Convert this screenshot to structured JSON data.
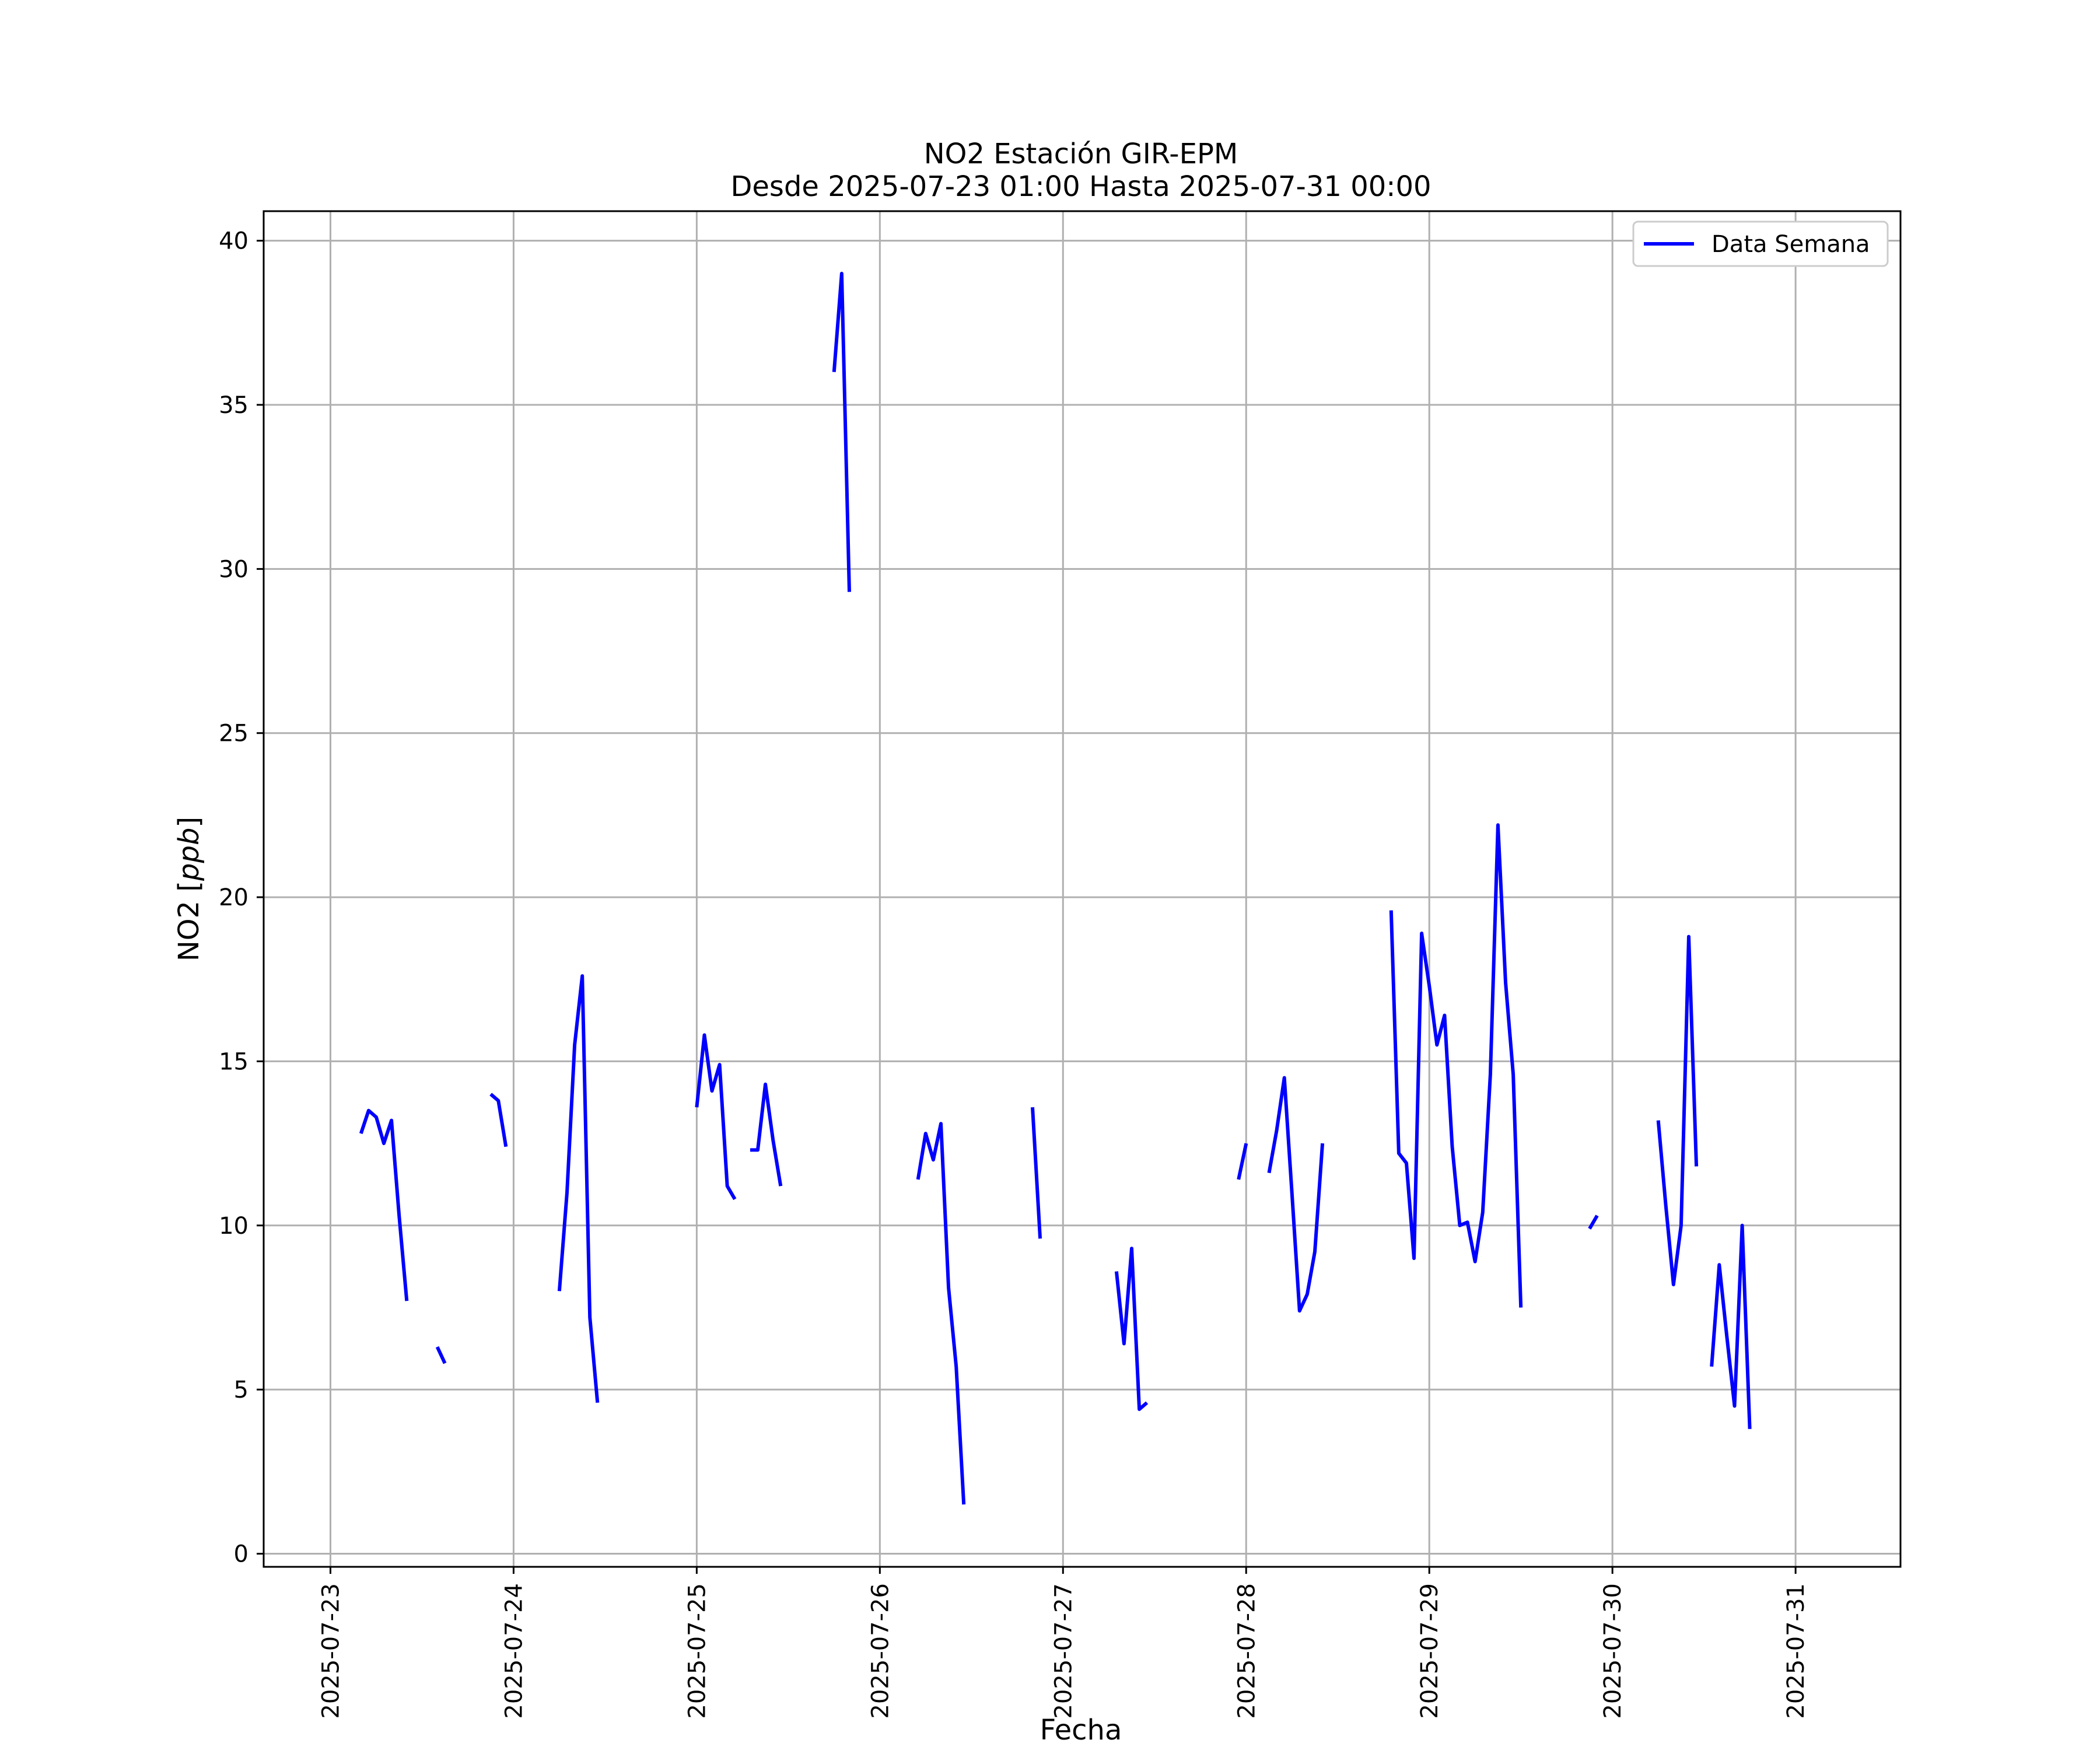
{
  "chart_data": {
    "type": "line",
    "title": "NO2 Estación GIR-EPM",
    "subtitle": "Desde 2025-07-23 01:00 Hasta 2025-07-31 00:00",
    "xlabel": "Fecha",
    "ylabel_text": "NO2 [",
    "ylabel_unit": "ppb",
    "ylabel_close": "]",
    "xlim": [
      "2025-07-22T15:15:00",
      "2025-07-31T13:45:00"
    ],
    "ylim": [
      -0.4,
      40.9
    ],
    "x_ticks": [
      "2025-07-23",
      "2025-07-24",
      "2025-07-25",
      "2025-07-26",
      "2025-07-27",
      "2025-07-28",
      "2025-07-29",
      "2025-07-30",
      "2025-07-31"
    ],
    "y_ticks": [
      0,
      5,
      10,
      15,
      20,
      25,
      30,
      35,
      40
    ],
    "y_tick_labels": [
      "0",
      "5",
      "10",
      "15",
      "20",
      "25",
      "30",
      "35",
      "40"
    ],
    "grid": true,
    "legend_position": "top-right",
    "series": [
      {
        "name": "Data Semana",
        "color": "#0000ff",
        "segments": [
          [
            [
              "2025-07-23T04:00",
              12.8
            ],
            [
              "2025-07-23T05:00",
              13.5
            ],
            [
              "2025-07-23T06:00",
              13.3
            ],
            [
              "2025-07-23T07:00",
              12.5
            ],
            [
              "2025-07-23T08:00",
              13.2
            ],
            [
              "2025-07-23T09:00",
              10.3
            ],
            [
              "2025-07-23T10:00",
              7.7
            ]
          ],
          [
            [
              "2025-07-23T14:00",
              6.3
            ],
            [
              "2025-07-23T15:00",
              5.8
            ]
          ],
          [
            [
              "2025-07-23T21:00",
              14.0
            ],
            [
              "2025-07-23T22:00",
              13.8
            ],
            [
              "2025-07-23T23:00",
              12.4
            ]
          ],
          [
            [
              "2025-07-24T06:00",
              8.0
            ],
            [
              "2025-07-24T07:00",
              11.0
            ],
            [
              "2025-07-24T08:00",
              15.5
            ],
            [
              "2025-07-24T09:00",
              17.6
            ],
            [
              "2025-07-24T10:00",
              7.2
            ],
            [
              "2025-07-24T11:00",
              4.6
            ]
          ],
          [
            [
              "2025-07-25T00:00",
              13.6
            ],
            [
              "2025-07-25T01:00",
              15.8
            ],
            [
              "2025-07-25T02:00",
              14.1
            ],
            [
              "2025-07-25T03:00",
              14.9
            ],
            [
              "2025-07-25T04:00",
              11.2
            ],
            [
              "2025-07-25T05:00",
              10.8
            ]
          ],
          [
            [
              "2025-07-25T07:00",
              12.3
            ],
            [
              "2025-07-25T08:00",
              12.3
            ],
            [
              "2025-07-25T09:00",
              14.3
            ],
            [
              "2025-07-25T10:00",
              12.6
            ],
            [
              "2025-07-25T11:00",
              11.2
            ]
          ],
          [
            [
              "2025-07-25T18:00",
              36.0
            ],
            [
              "2025-07-25T19:00",
              39.0
            ],
            [
              "2025-07-25T20:00",
              29.3
            ]
          ],
          [
            [
              "2025-07-26T05:00",
              11.4
            ],
            [
              "2025-07-26T06:00",
              12.8
            ],
            [
              "2025-07-26T07:00",
              12.0
            ],
            [
              "2025-07-26T08:00",
              13.1
            ],
            [
              "2025-07-26T09:00",
              8.1
            ],
            [
              "2025-07-26T10:00",
              5.7
            ],
            [
              "2025-07-26T11:00",
              1.5
            ]
          ],
          [
            [
              "2025-07-26T20:00",
              13.6
            ],
            [
              "2025-07-26T21:00",
              9.6
            ]
          ],
          [
            [
              "2025-07-27T07:00",
              8.6
            ],
            [
              "2025-07-27T08:00",
              6.4
            ],
            [
              "2025-07-27T09:00",
              9.3
            ],
            [
              "2025-07-27T10:00",
              4.4
            ],
            [
              "2025-07-27T11:00",
              4.6
            ]
          ],
          [
            [
              "2025-07-27T23:00",
              11.4
            ],
            [
              "2025-07-28T00:00",
              12.5
            ]
          ],
          [
            [
              "2025-07-28T03:00",
              11.6
            ],
            [
              "2025-07-28T04:00",
              12.9
            ],
            [
              "2025-07-28T05:00",
              14.5
            ],
            [
              "2025-07-28T06:00",
              11.0
            ],
            [
              "2025-07-28T07:00",
              7.4
            ],
            [
              "2025-07-28T08:00",
              7.9
            ],
            [
              "2025-07-28T09:00",
              9.2
            ],
            [
              "2025-07-28T10:00",
              12.5
            ]
          ],
          [
            [
              "2025-07-28T19:00",
              19.6
            ],
            [
              "2025-07-28T20:00",
              12.2
            ],
            [
              "2025-07-28T21:00",
              11.9
            ],
            [
              "2025-07-28T22:00",
              9.0
            ],
            [
              "2025-07-28T23:00",
              18.9
            ],
            [
              "2025-07-29T00:00",
              17.3
            ],
            [
              "2025-07-29T01:00",
              15.5
            ],
            [
              "2025-07-29T02:00",
              16.4
            ],
            [
              "2025-07-29T03:00",
              12.4
            ],
            [
              "2025-07-29T04:00",
              10.0
            ],
            [
              "2025-07-29T05:00",
              10.1
            ],
            [
              "2025-07-29T06:00",
              8.9
            ],
            [
              "2025-07-29T07:00",
              10.4
            ],
            [
              "2025-07-29T08:00",
              14.6
            ],
            [
              "2025-07-29T09:00",
              22.2
            ],
            [
              "2025-07-29T10:00",
              17.4
            ],
            [
              "2025-07-29T11:00",
              14.6
            ],
            [
              "2025-07-29T12:00",
              7.5
            ]
          ],
          [
            [
              "2025-07-29T21:00",
              9.9
            ],
            [
              "2025-07-29T22:00",
              10.3
            ]
          ],
          [
            [
              "2025-07-30T06:00",
              13.2
            ],
            [
              "2025-07-30T07:00",
              10.6
            ],
            [
              "2025-07-30T08:00",
              8.2
            ],
            [
              "2025-07-30T09:00",
              10.0
            ],
            [
              "2025-07-30T10:00",
              18.8
            ],
            [
              "2025-07-30T11:00",
              11.8
            ]
          ],
          [
            [
              "2025-07-30T13:00",
              5.7
            ],
            [
              "2025-07-30T14:00",
              8.8
            ],
            [
              "2025-07-30T15:00",
              6.6
            ],
            [
              "2025-07-30T16:00",
              4.5
            ],
            [
              "2025-07-30T17:00",
              10.0
            ],
            [
              "2025-07-30T18:00",
              3.8
            ]
          ]
        ]
      }
    ]
  }
}
